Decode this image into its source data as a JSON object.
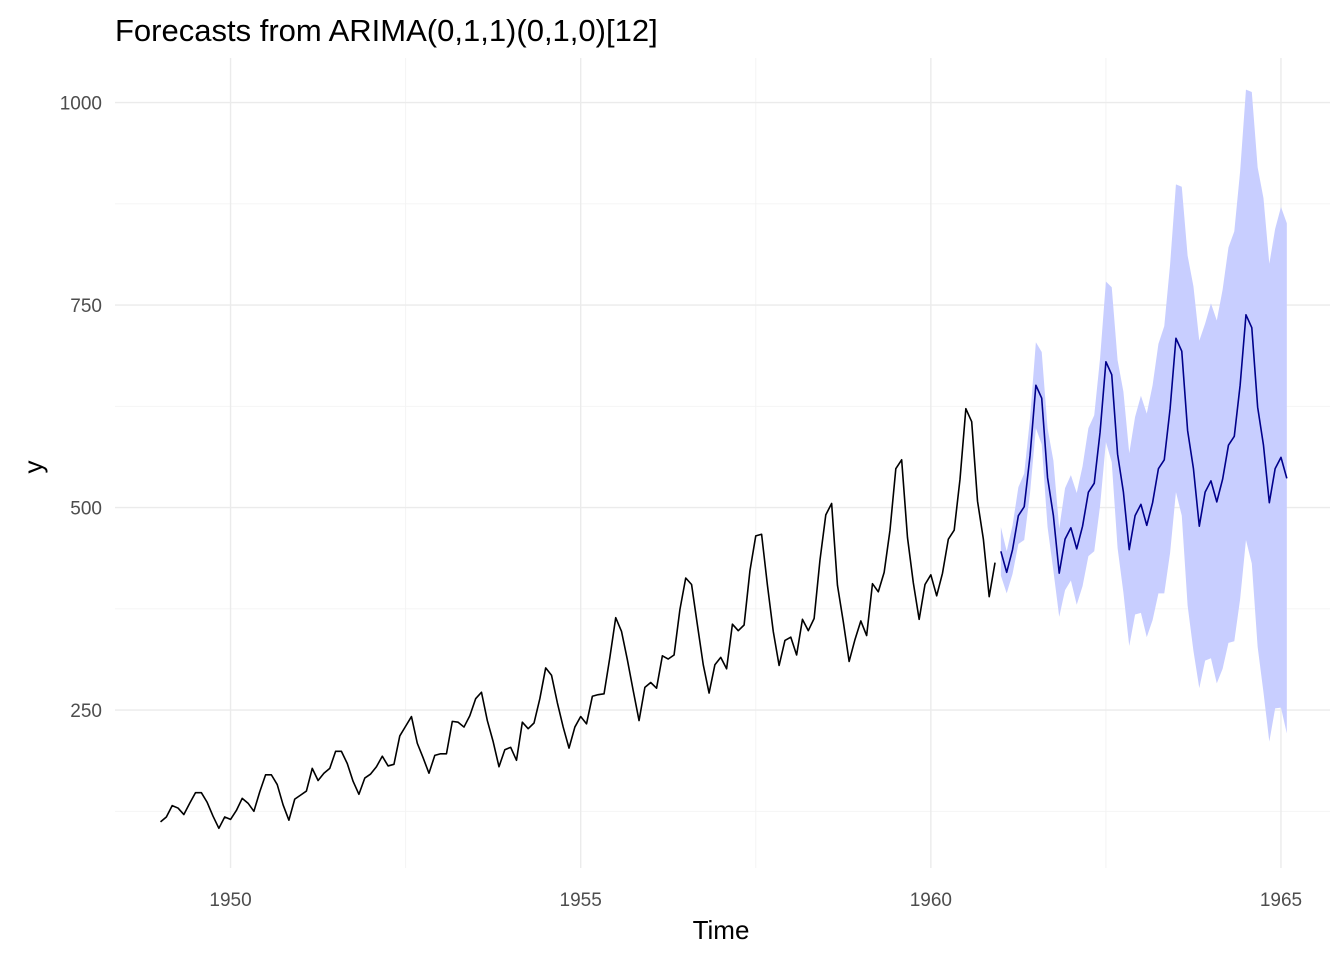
{
  "chart_data": {
    "type": "line",
    "title": "Forecasts from ARIMA(0,1,1)(0,1,0)[12]",
    "xlabel": "Time",
    "ylabel": "y",
    "xlim": [
      1948.35,
      1965.7
    ],
    "ylim": [
      55,
      1055
    ],
    "x_ticks": [
      1950,
      1955,
      1960,
      1965
    ],
    "x_tick_labels": [
      "1950",
      "1955",
      "1960",
      "1965"
    ],
    "y_ticks": [
      250,
      500,
      750,
      1000
    ],
    "y_tick_labels": [
      "250",
      "500",
      "750",
      "1000"
    ],
    "grid": true,
    "legend": "none",
    "colors": {
      "observed": "#000000",
      "forecast": "#00008b",
      "interval": "#c8ceff"
    },
    "series": [
      {
        "start": 1949.0,
        "frequency": 12,
        "values": [
          112,
          118,
          132,
          129,
          121,
          135,
          148,
          148,
          136,
          119,
          104,
          118,
          115,
          126,
          141,
          135,
          125,
          149,
          170,
          170,
          158,
          133,
          114,
          140,
          145,
          150,
          178,
          163,
          172,
          178,
          199,
          199,
          184,
          162,
          146,
          166,
          171,
          180,
          193,
          181,
          183,
          218,
          230,
          242,
          209,
          191,
          172,
          194,
          196,
          196,
          236,
          235,
          229,
          243,
          264,
          272,
          237,
          211,
          180,
          201,
          204,
          188,
          235,
          227,
          234,
          264,
          302,
          293,
          259,
          229,
          203,
          229,
          242,
          233,
          267,
          269,
          270,
          315,
          364,
          347,
          312,
          274,
          237,
          278,
          284,
          277,
          317,
          313,
          318,
          374,
          413,
          405,
          355,
          306,
          271,
          306,
          315,
          301,
          356,
          348,
          355,
          422,
          465,
          467,
          404,
          347,
          305,
          336,
          340,
          318,
          362,
          348,
          363,
          435,
          491,
          505,
          404,
          359,
          310,
          337,
          360,
          342,
          406,
          396,
          420,
          472,
          548,
          559,
          463,
          407,
          362,
          405,
          417,
          391,
          419,
          461,
          472,
          535,
          622,
          606,
          508,
          461,
          390,
          432
        ]
      },
      {
        "start": 1961.0,
        "frequency": 12,
        "values": [
          446,
          420,
          448,
          490,
          501,
          564,
          651,
          635,
          537,
          490,
          419,
          461,
          475,
          449,
          477,
          519,
          530,
          593,
          680,
          664,
          566,
          519,
          448,
          490,
          504,
          478,
          506,
          548,
          559,
          622,
          709,
          693,
          595,
          548,
          477,
          519,
          533,
          507,
          535,
          577,
          588,
          651,
          738,
          722,
          624,
          577,
          506,
          548,
          562,
          536
        ]
      }
    ],
    "interval": {
      "start": 1961.0,
      "frequency": 12,
      "lower": [
        416,
        394,
        418,
        455,
        460,
        518,
        598,
        578,
        476,
        422,
        365,
        398,
        410,
        380,
        403,
        440,
        446,
        502,
        581,
        556,
        450,
        395,
        329,
        368,
        370,
        340,
        361,
        394,
        394,
        444,
        519,
        490,
        379,
        323,
        277,
        311,
        314,
        283,
        301,
        333,
        335,
        387,
        460,
        431,
        328,
        272,
        211,
        252,
        253,
        221
      ],
      "upper": [
        476,
        446,
        478,
        525,
        542,
        610,
        704,
        692,
        598,
        558,
        474,
        524,
        540,
        518,
        551,
        598,
        614,
        684,
        779,
        772,
        682,
        643,
        567,
        612,
        638,
        616,
        651,
        702,
        724,
        800,
        899,
        896,
        811,
        773,
        706,
        727,
        752,
        731,
        769,
        821,
        841,
        915,
        1016,
        1013,
        920,
        882,
        801,
        844,
        871,
        851
      ]
    }
  }
}
